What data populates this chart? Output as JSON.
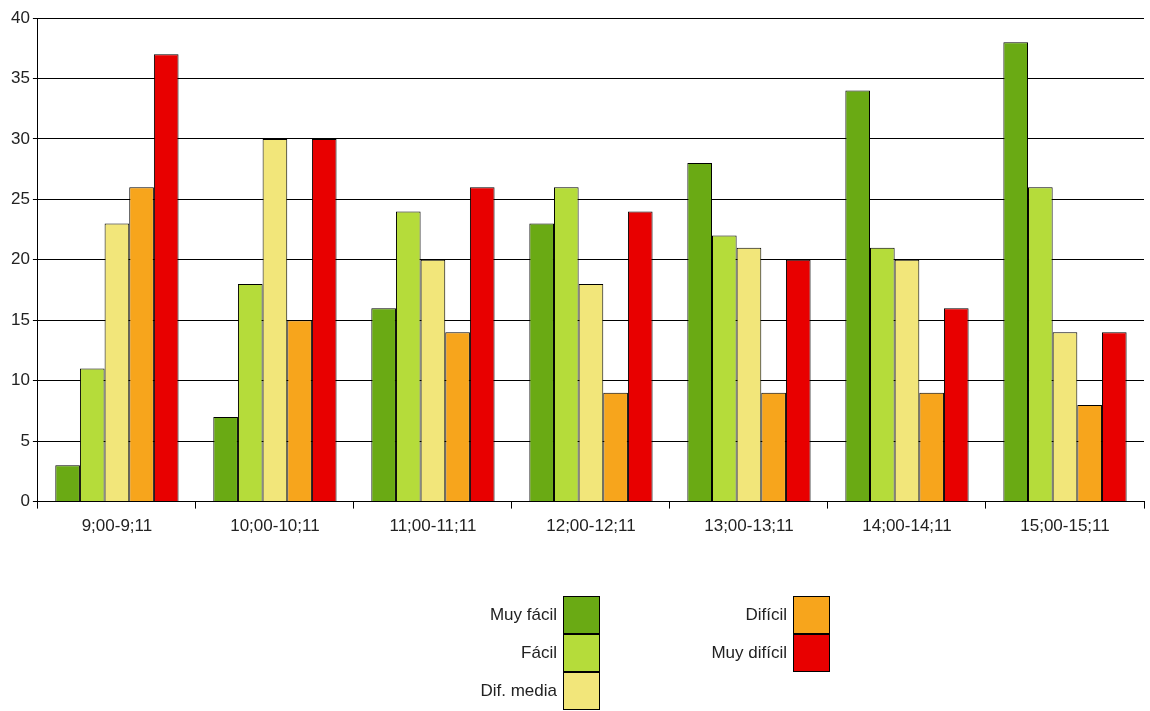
{
  "chart_data": {
    "type": "bar",
    "categories": [
      "9;00-9;11",
      "10;00-10;11",
      "11;00-11;11",
      "12;00-12;11",
      "13;00-13;11",
      "14;00-14;11",
      "15;00-15;11"
    ],
    "series": [
      {
        "name": "Muy fácil",
        "color": "#6aaa14",
        "values": [
          3,
          7,
          16,
          23,
          28,
          34,
          38
        ]
      },
      {
        "name": "Fácil",
        "color": "#b5dc3a",
        "values": [
          11,
          18,
          24,
          26,
          22,
          21,
          26
        ]
      },
      {
        "name": "Dif. media",
        "color": "#f2e67a",
        "values": [
          23,
          30,
          20,
          18,
          21,
          20,
          14
        ]
      },
      {
        "name": "Difícil",
        "color": "#f7a51c",
        "values": [
          26,
          15,
          14,
          9,
          9,
          9,
          8
        ]
      },
      {
        "name": "Muy difícil",
        "color": "#e80000",
        "values": [
          37,
          30,
          26,
          24,
          20,
          16,
          14
        ]
      }
    ],
    "ylim": [
      0,
      40
    ],
    "yticks": [
      0,
      5,
      10,
      15,
      20,
      25,
      30,
      35,
      40
    ],
    "grid": "y",
    "legend": "bottom"
  }
}
